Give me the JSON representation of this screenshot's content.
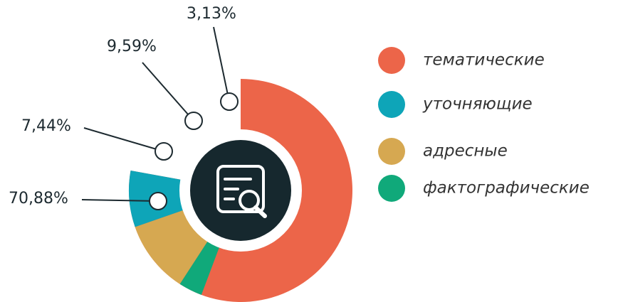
{
  "chart_data": {
    "type": "donut",
    "categories": [
      "тематические",
      "уточняющие",
      "адресные",
      "фактографические"
    ],
    "values": [
      70.88,
      7.44,
      9.59,
      3.13
    ],
    "value_labels": [
      "70,88%",
      "7,44%",
      "9,59%",
      "3,13%"
    ],
    "colors": [
      "#ec6549",
      "#0ea5b8",
      "#d6a851",
      "#10a97a"
    ],
    "direction": "counterclockwise"
  }
}
